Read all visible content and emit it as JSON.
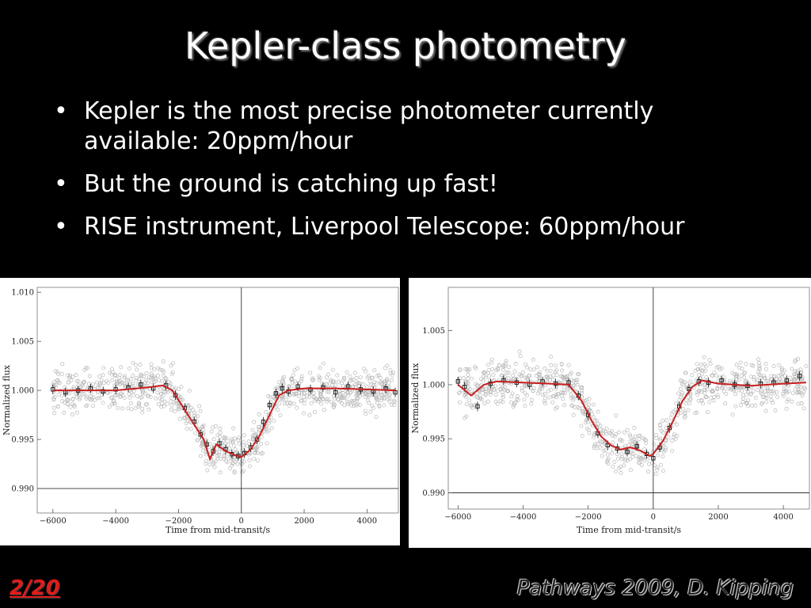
{
  "slide": {
    "title": "Kepler-class photometry",
    "bullets": [
      "Kepler is the most precise photometer currently available: 20ppm/hour",
      "But the ground is catching up fast!",
      "RISE instrument, Liverpool Telescope: 60ppm/hour"
    ],
    "page_number": "2/20",
    "footer": "Pathways 2009, D. Kipping"
  },
  "colors": {
    "background": "#000000",
    "model_line": "#c81e1e",
    "binned_points": "#111111",
    "raw_points": "#b8b8b8",
    "page_number": "#e21b1b"
  },
  "chart_data": [
    {
      "type": "scatter",
      "xlabel": "Time from mid-transit/s",
      "ylabel": "Normalized flux",
      "xlim": [
        -6500,
        5000
      ],
      "ylim": [
        0.9875,
        1.0105
      ],
      "xticks": [
        -6000,
        -4000,
        -2000,
        0,
        2000,
        4000
      ],
      "yticks": [
        0.99,
        0.995,
        1.0,
        1.005,
        1.01
      ],
      "xtick_labels": [
        "−6000",
        "−4000",
        "−2000",
        "0",
        "2000",
        "4000"
      ],
      "ytick_labels": [
        "0.990",
        "0.995",
        "1.000",
        "1.005",
        "1.010"
      ],
      "reference_lines": {
        "x": 0,
        "y": 0.99
      },
      "grid": false,
      "series": [
        {
          "style": "line",
          "x": [
            -6000,
            -5000,
            -4000,
            -3000,
            -2500,
            -2200,
            -1800,
            -1500,
            -1200,
            -1000,
            -800,
            -500,
            -200,
            0,
            300,
            600,
            900,
            1200,
            1500,
            2000,
            3000,
            4000,
            4900
          ],
          "y": [
            1.0,
            1.0,
            1.0,
            1.0003,
            1.0005,
            1.0,
            0.998,
            0.9965,
            0.995,
            0.993,
            0.9945,
            0.9938,
            0.9934,
            0.9932,
            0.994,
            0.9955,
            0.9975,
            0.9995,
            1.0,
            1.0002,
            1.0002,
            1.0001,
            1.0
          ]
        },
        {
          "style": "points",
          "x": [
            -6000,
            -5600,
            -5200,
            -4800,
            -4400,
            -4000,
            -3600,
            -3200,
            -2800,
            -2400,
            -2100,
            -1800,
            -1500,
            -1300,
            -1100,
            -900,
            -700,
            -500,
            -300,
            -100,
            100,
            300,
            500,
            700,
            900,
            1100,
            1300,
            1500,
            1800,
            2200,
            2600,
            3000,
            3400,
            3800,
            4200,
            4600,
            4900
          ],
          "y": [
            1.0001,
            0.9998,
            1.0,
            1.0002,
            0.9999,
            1.0001,
            1.0003,
            1.0006,
            1.0002,
            1.0005,
            0.9995,
            0.9982,
            0.9968,
            0.9955,
            0.9945,
            0.9938,
            0.9946,
            0.994,
            0.9935,
            0.9933,
            0.9936,
            0.9942,
            0.995,
            0.9968,
            0.9985,
            0.9997,
            1.0002,
            0.9999,
            1.0004,
            1.0001,
            1.0003,
            0.9998,
            1.0004,
            1.0001,
            0.9999,
            1.0002,
            0.9998
          ]
        }
      ]
    },
    {
      "type": "scatter",
      "xlabel": "Time from mid-transit/s",
      "ylabel": "Normalized flux",
      "xlim": [
        -6300,
        4800
      ],
      "ylim": [
        0.9885,
        1.009
      ],
      "xticks": [
        -6000,
        -4000,
        -2000,
        0,
        2000,
        4000
      ],
      "yticks": [
        0.99,
        0.995,
        1.0,
        1.005
      ],
      "xtick_labels": [
        "−6000",
        "−4000",
        "−2000",
        "0",
        "2000",
        "4000"
      ],
      "ytick_labels": [
        "0.990",
        "0.995",
        "1.000",
        "1.005"
      ],
      "reference_lines": {
        "x": 0,
        "y": 0.99
      },
      "grid": false,
      "series": [
        {
          "style": "line",
          "x": [
            -6000,
            -5600,
            -5200,
            -4800,
            -4000,
            -3200,
            -2600,
            -2200,
            -1900,
            -1600,
            -1300,
            -1000,
            -700,
            -400,
            -100,
            0,
            300,
            600,
            900,
            1200,
            1500,
            2000,
            3000,
            4000,
            4700
          ],
          "y": [
            1.0,
            0.999,
            1.0,
            1.0003,
            1.0002,
            1.0001,
            1.0,
            0.9985,
            0.9967,
            0.9952,
            0.9944,
            0.994,
            0.9942,
            0.9939,
            0.9934,
            0.9936,
            0.9948,
            0.9966,
            0.9985,
            0.9998,
            1.0004,
            1.0001,
            0.9999,
            1.0001,
            1.0002
          ]
        },
        {
          "style": "points",
          "x": [
            -6000,
            -5800,
            -5400,
            -5000,
            -4600,
            -4200,
            -3800,
            -3400,
            -3000,
            -2600,
            -2300,
            -2000,
            -1700,
            -1400,
            -1100,
            -800,
            -500,
            -200,
            0,
            200,
            500,
            800,
            1100,
            1400,
            1700,
            2100,
            2500,
            2900,
            3300,
            3700,
            4100,
            4500
          ],
          "y": [
            1.0003,
            0.9998,
            0.998,
            1.0001,
            1.0004,
            1.0002,
            1.0,
            1.0003,
            1.0001,
            1.0002,
            0.999,
            0.9972,
            0.9955,
            0.9944,
            0.9941,
            0.9938,
            0.9943,
            0.9936,
            0.9932,
            0.9942,
            0.996,
            0.998,
            0.9996,
            1.0003,
            1.0002,
            1.0004,
            1.0,
            0.9999,
            1.0001,
            1.0002,
            1.0004,
            1.0008
          ]
        }
      ]
    }
  ]
}
